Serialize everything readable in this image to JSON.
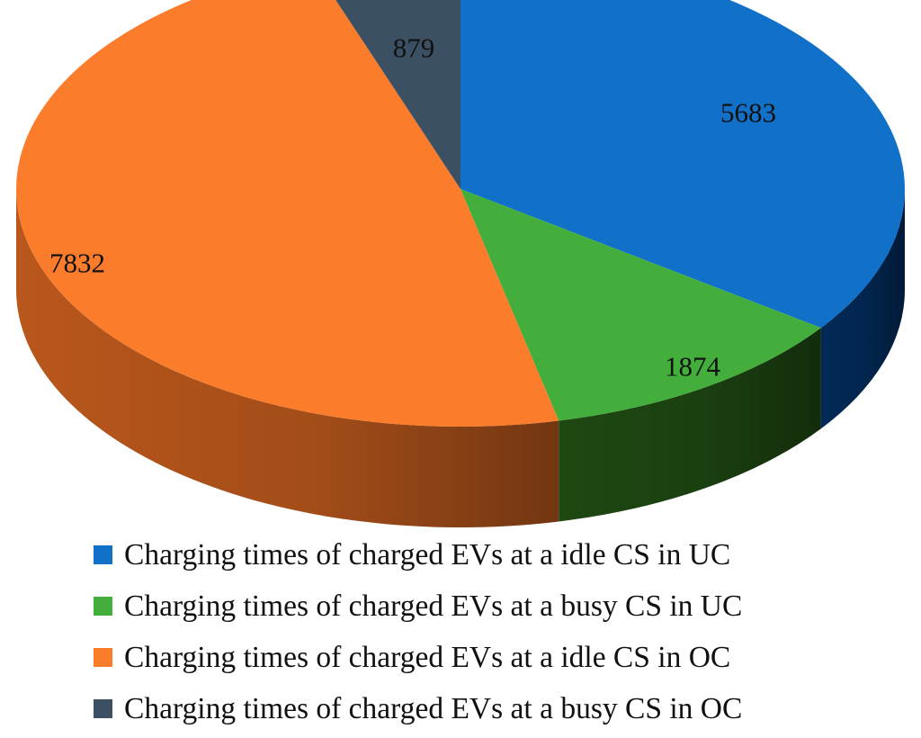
{
  "chart_data": {
    "type": "pie",
    "variant": "3d",
    "title": "",
    "series": [
      {
        "name": "Charging times of charged EVs at a idle CS in UC",
        "value": 5683,
        "label": "5683",
        "color": "#1170C8",
        "side_color": "#022A58"
      },
      {
        "name": "Charging times of charged EVs at a busy CS in UC",
        "value": 1874,
        "label": "1874",
        "color": "#43AE3C",
        "side_color": "#1E4812"
      },
      {
        "name": "Charging times of charged EVs at a idle CS in OC",
        "value": 7832,
        "label": "7832",
        "color": "#FB7D2B",
        "side_color": "#B9571C"
      },
      {
        "name": "Charging times of charged EVs at a busy CS in OC",
        "value": 879,
        "label": "879",
        "color": "#3C5064",
        "side_color": "#26323F"
      }
    ],
    "legend": "bottom"
  }
}
